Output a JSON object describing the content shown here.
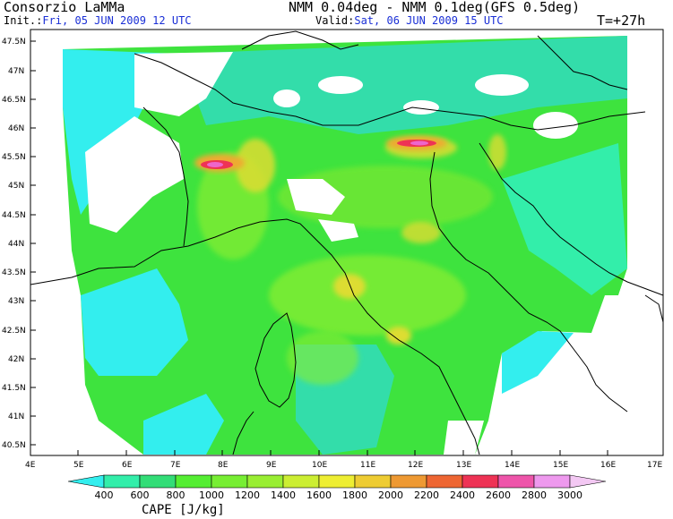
{
  "header": {
    "org": "Consorzio LaMMa",
    "init_label": "Init.:",
    "init_value": "Fri, 05 JUN 2009   12 UTC",
    "model": "NMM 0.04deg - NMM 0.1deg(GFS 0.5deg)",
    "valid_label": "Valid:",
    "valid_value": "Sat, 06 JUN 2009   15 UTC",
    "forecast_time": "T=+27h"
  },
  "axes": {
    "lat_labels": [
      "47.5N",
      "47N",
      "46.5N",
      "46N",
      "45.5N",
      "45N",
      "44.5N",
      "44N",
      "43.5N",
      "43N",
      "42.5N",
      "42N",
      "41.5N",
      "41N",
      "40.5N"
    ],
    "lon_labels": [
      "4E",
      "5E",
      "6E",
      "7E",
      "8E",
      "9E",
      "10E",
      "11E",
      "12E",
      "13E",
      "14E",
      "15E",
      "16E",
      "17E"
    ]
  },
  "colorbar": {
    "title": "CAPE [J/kg]",
    "labels": [
      "400",
      "600",
      "800",
      "1000",
      "1200",
      "1400",
      "1600",
      "1800",
      "2000",
      "2200",
      "2400",
      "2600",
      "2800",
      "3000"
    ],
    "colors": [
      "#33eeee",
      "#33eeaa",
      "#33dd77",
      "#55ee33",
      "#77ee33",
      "#99ee33",
      "#ccee33",
      "#eeee33",
      "#eecc33",
      "#ee9933",
      "#ee6633",
      "#ee3355",
      "#ee55aa",
      "#ee99ee",
      "#f3c8f3"
    ]
  },
  "map_colors": {
    "ocean_base": "#3ee33e",
    "land_cyan": "#33eeee",
    "land_teal": "#33ddaa",
    "green": "#44dd44",
    "lime": "#88ee33",
    "yellow": "#dddd33",
    "orange": "#eeaa33",
    "red": "#ee3355",
    "magenta": "#ee66cc",
    "coast": "#000000"
  }
}
